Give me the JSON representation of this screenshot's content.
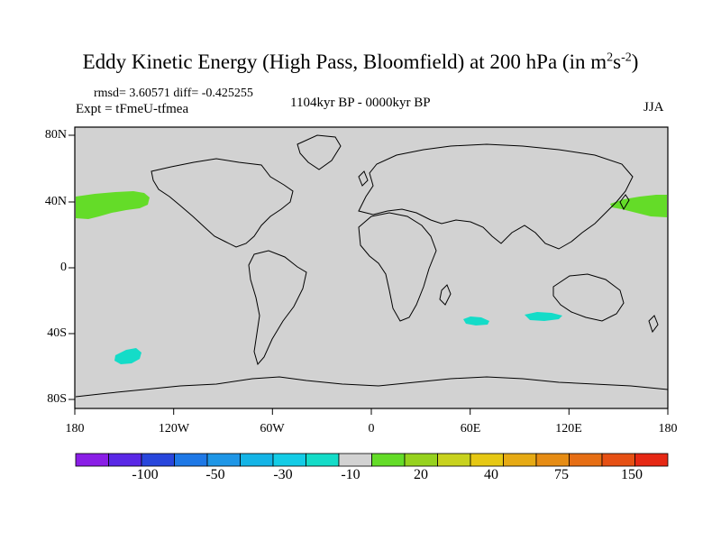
{
  "title": {
    "main": "Eddy Kinetic Energy (High Pass, Bloomfield) at 200 hPa (in m",
    "sup1": "2",
    "mid": "s",
    "sup2": "-2",
    "end": ")"
  },
  "stats": "rmsd= 3.60571 diff= -0.425255",
  "expt": "Expt = tFmeU-tfmea",
  "period": "1104kyr BP - 0000kyr BP",
  "season": "JJA",
  "y_ticks": [
    "80N",
    "40N",
    "0",
    "40S",
    "80S"
  ],
  "x_ticks": [
    "180",
    "120W",
    "60W",
    "0",
    "60E",
    "120E",
    "180"
  ],
  "colorbar": {
    "colors": [
      "#8a1ee6",
      "#5a28e6",
      "#2846dc",
      "#1e78e6",
      "#1e96e6",
      "#14b4e6",
      "#14cce6",
      "#14dcc8",
      "#d2d2d2",
      "#64dc28",
      "#96d21e",
      "#c8d21e",
      "#e6c814",
      "#e6aa14",
      "#e68c14",
      "#e66e14",
      "#e65014",
      "#e62814"
    ],
    "labels": [
      "-100",
      "-50",
      "-30",
      "-10",
      "20",
      "40",
      "75",
      "150"
    ]
  },
  "map": {
    "background_color": "#d2d2d2",
    "positive_color": "#64dc28",
    "negative_color": "#14dcc8"
  }
}
